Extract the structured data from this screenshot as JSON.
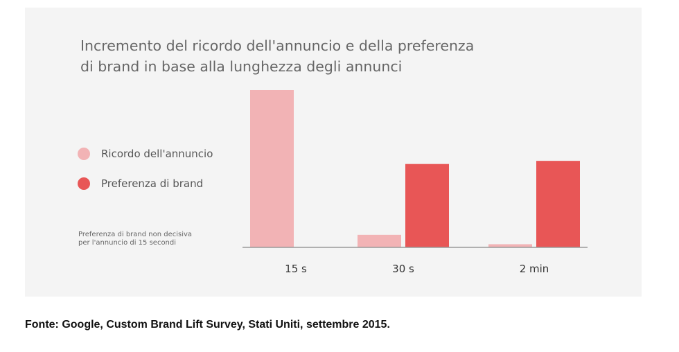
{
  "title_line1": "Incremento del ricordo dell'annuncio e della preferenza",
  "title_line2": "di brand in base alla lunghezza degli annunci",
  "legend": [
    {
      "label": "Ricordo dell'annuncio",
      "color": "#f2b3b5"
    },
    {
      "label": "Preferenza di brand",
      "color": "#e85656"
    }
  ],
  "note_line1": "Preferenza di brand non decisiva",
  "note_line2": "per l'annuncio di 15 secondi",
  "source": "Fonte: Google, Custom Brand Lift Survey, Stati Uniti, settembre 2015.",
  "chart_data": {
    "type": "bar",
    "title": "Incremento del ricordo dell'annuncio e della preferenza di brand in base alla lunghezza degli annunci",
    "categories": [
      "15 s",
      "30 s",
      "2 min"
    ],
    "series": [
      {
        "name": "Ricordo dell'annuncio",
        "color": "#f2b3b5",
        "values": [
          100,
          8,
          2
        ]
      },
      {
        "name": "Preferenza di brand",
        "color": "#e85656",
        "values": [
          0,
          53,
          55
        ]
      }
    ],
    "ylim": [
      0,
      100
    ],
    "axis_labels_shown": false,
    "grid": false,
    "legend_position": "left"
  }
}
